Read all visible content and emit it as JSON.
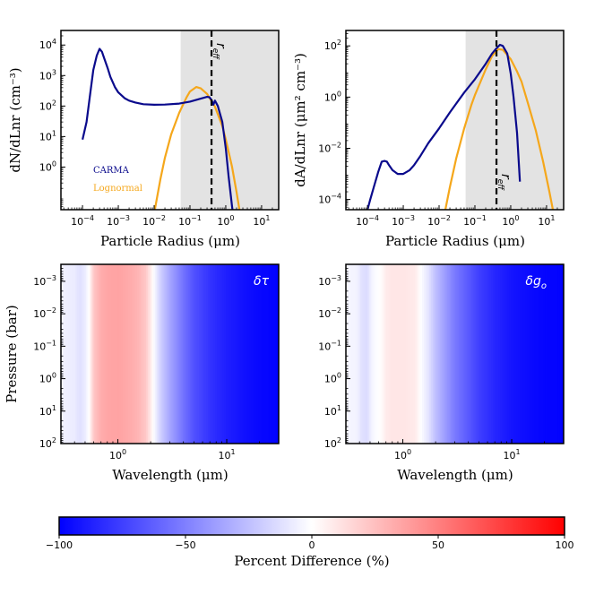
{
  "chart_data": [
    {
      "type": "line",
      "title": "",
      "xlabel": "Particle Radius (μm)",
      "ylabel": "dN/dLnr (cm⁻³)",
      "xscale": "log",
      "yscale": "log",
      "xlim": [
        2.5e-05,
        30
      ],
      "ylim": [
        0.04,
        30000
      ],
      "xticks": [
        {
          "v": 0.0001,
          "b": "10",
          "e": "−4"
        },
        {
          "v": 0.001,
          "b": "10",
          "e": "−3"
        },
        {
          "v": 0.01,
          "b": "10",
          "e": "−2"
        },
        {
          "v": 0.1,
          "b": "10",
          "e": "−1"
        },
        {
          "v": 1,
          "b": "10",
          "e": "0"
        },
        {
          "v": 10,
          "b": "10",
          "e": "1"
        }
      ],
      "yticks": [
        {
          "v": 1,
          "b": "10",
          "e": "0"
        },
        {
          "v": 10,
          "b": "10",
          "e": "1"
        },
        {
          "v": 100,
          "b": "10",
          "e": "2"
        },
        {
          "v": 1000,
          "b": "10",
          "e": "3"
        },
        {
          "v": 10000,
          "b": "10",
          "e": "4"
        }
      ],
      "shaded_region": [
        0.055,
        30
      ],
      "vline": {
        "x": 0.4,
        "label": "r",
        "sub": "eff"
      },
      "legend": [
        {
          "name": "CARMA",
          "color": "#0a0a8c"
        },
        {
          "name": "Lognormal",
          "color": "#f5a71b"
        }
      ],
      "series": [
        {
          "name": "CARMA",
          "color": "#0a0a8c",
          "x": [
            0.0001,
            0.00013,
            0.00016,
            0.0002,
            0.00025,
            0.0003,
            0.00035,
            0.0004,
            0.0005,
            0.0006,
            0.0008,
            0.001,
            0.0015,
            0.002,
            0.003,
            0.005,
            0.01,
            0.02,
            0.05,
            0.1,
            0.2,
            0.3,
            0.35,
            0.4,
            0.45,
            0.5,
            0.6,
            0.8,
            1.0,
            1.2,
            1.5,
            1.8
          ],
          "y": [
            8,
            30,
            200,
            1500,
            4500,
            7500,
            6000,
            3800,
            1800,
            900,
            420,
            280,
            180,
            150,
            130,
            115,
            110,
            112,
            120,
            140,
            175,
            200,
            195,
            160,
            110,
            150,
            100,
            30,
            4,
            0.5,
            0.05,
            0.01
          ]
        },
        {
          "name": "Lognormal",
          "color": "#f5a71b",
          "x": [
            0.01,
            0.015,
            0.02,
            0.03,
            0.05,
            0.08,
            0.1,
            0.15,
            0.2,
            0.3,
            0.5,
            0.8,
            1.0,
            1.5,
            2.0,
            2.5
          ],
          "y": [
            0.03,
            0.4,
            2,
            12,
            60,
            190,
            300,
            420,
            380,
            250,
            95,
            22,
            8,
            1,
            0.15,
            0.03
          ]
        }
      ]
    },
    {
      "type": "line",
      "title": "",
      "xlabel": "Particle Radius (μm)",
      "ylabel": "dA/dLnr (μm² cm⁻³)",
      "xscale": "log",
      "yscale": "log",
      "xlim": [
        2.5e-05,
        30
      ],
      "ylim": [
        4e-05,
        400
      ],
      "xticks": [
        {
          "v": 0.0001,
          "b": "10",
          "e": "−4"
        },
        {
          "v": 0.001,
          "b": "10",
          "e": "−3"
        },
        {
          "v": 0.01,
          "b": "10",
          "e": "−2"
        },
        {
          "v": 0.1,
          "b": "10",
          "e": "−1"
        },
        {
          "v": 1,
          "b": "10",
          "e": "0"
        },
        {
          "v": 10,
          "b": "10",
          "e": "1"
        }
      ],
      "yticks": [
        {
          "v": 0.0001,
          "b": "10",
          "e": "−4"
        },
        {
          "v": 0.01,
          "b": "10",
          "e": "−2"
        },
        {
          "v": 1,
          "b": "10",
          "e": "0"
        },
        {
          "v": 100,
          "b": "10",
          "e": "2"
        }
      ],
      "shaded_region": [
        0.055,
        30
      ],
      "vline": {
        "x": 0.4,
        "label": "r",
        "sub": "eff"
      },
      "series": [
        {
          "name": "CARMA",
          "color": "#0a0a8c",
          "x": [
            0.0001,
            0.00012,
            0.00015,
            0.0002,
            0.00025,
            0.0003,
            0.00035,
            0.0004,
            0.0005,
            0.0007,
            0.001,
            0.0015,
            0.002,
            0.003,
            0.005,
            0.01,
            0.02,
            0.05,
            0.1,
            0.2,
            0.3,
            0.4,
            0.5,
            0.6,
            0.8,
            1.0,
            1.2,
            1.5,
            1.8
          ],
          "y": [
            4e-05,
            0.0001,
            0.0003,
            0.0012,
            0.003,
            0.0032,
            0.003,
            0.0022,
            0.0014,
            0.001,
            0.001,
            0.0014,
            0.0022,
            0.005,
            0.016,
            0.06,
            0.25,
            1.5,
            5,
            20,
            50,
            80,
            110,
            100,
            50,
            8,
            1,
            0.04,
            0.0005
          ]
        },
        {
          "name": "Lognormal",
          "color": "#f5a71b",
          "x": [
            0.015,
            0.02,
            0.03,
            0.05,
            0.08,
            0.1,
            0.2,
            0.3,
            0.45,
            0.6,
            1.0,
            1.5,
            2.0,
            3.0,
            5.0,
            8.0,
            12.0,
            15.0
          ],
          "y": [
            4e-05,
            0.0003,
            0.004,
            0.06,
            0.5,
            1.2,
            12,
            40,
            75,
            70,
            30,
            10,
            4,
            0.6,
            0.05,
            0.003,
            0.0002,
            4e-05
          ]
        }
      ]
    },
    {
      "type": "heatmap",
      "xlabel": "Wavelength (μm)",
      "ylabel": "Pressure (bar)",
      "annotation": "δτ",
      "xscale": "log",
      "yscale": "log",
      "xlim": [
        0.3,
        30
      ],
      "ylim": [
        100,
        0.0003
      ],
      "xticks": [
        {
          "v": 1,
          "b": "10",
          "e": "0"
        },
        {
          "v": 10,
          "b": "10",
          "e": "1"
        }
      ],
      "yticks": [
        {
          "v": 0.001,
          "b": "10",
          "e": "−3"
        },
        {
          "v": 0.01,
          "b": "10",
          "e": "−2"
        },
        {
          "v": 0.1,
          "b": "10",
          "e": "−1"
        },
        {
          "v": 1,
          "b": "10",
          "e": "0"
        },
        {
          "v": 10,
          "b": "10",
          "e": "1"
        },
        {
          "v": 100,
          "b": "10",
          "e": "2"
        }
      ],
      "profile_wavelength": [
        0.3,
        0.4,
        0.45,
        0.5,
        0.55,
        0.6,
        0.7,
        0.8,
        1.0,
        1.2,
        1.5,
        1.8,
        2.0,
        2.2,
        2.5,
        3.0,
        4.0,
        5.0,
        7.0,
        10.0,
        15.0,
        20.0,
        30.0
      ],
      "profile_diff": [
        -5,
        -8,
        -12,
        -8,
        2,
        22,
        32,
        35,
        36,
        34,
        30,
        22,
        8,
        -5,
        -20,
        -35,
        -55,
        -68,
        -80,
        -88,
        -94,
        -97,
        -99
      ]
    },
    {
      "type": "heatmap",
      "xlabel": "Wavelength (μm)",
      "ylabel": "",
      "annotation": "δg",
      "annotation_sub": "o",
      "xscale": "log",
      "yscale": "log",
      "xlim": [
        0.3,
        30
      ],
      "ylim": [
        100,
        0.0003
      ],
      "xticks": [
        {
          "v": 1,
          "b": "10",
          "e": "0"
        },
        {
          "v": 10,
          "b": "10",
          "e": "1"
        }
      ],
      "yticks": [
        {
          "v": 0.001,
          "b": "10",
          "e": "−3"
        },
        {
          "v": 0.01,
          "b": "10",
          "e": "−2"
        },
        {
          "v": 0.1,
          "b": "10",
          "e": "−1"
        },
        {
          "v": 1,
          "b": "10",
          "e": "0"
        },
        {
          "v": 10,
          "b": "10",
          "e": "1"
        },
        {
          "v": 100,
          "b": "10",
          "e": "2"
        }
      ],
      "profile_wavelength": [
        0.3,
        0.38,
        0.42,
        0.47,
        0.52,
        0.6,
        0.65,
        0.7,
        0.8,
        1.0,
        1.3,
        1.4,
        1.5,
        1.7,
        2.0,
        2.5,
        3.0,
        4.0,
        5.0,
        7.0,
        10.0,
        15.0,
        20.0,
        30.0
      ],
      "profile_diff": [
        -3,
        -5,
        -12,
        -14,
        -4,
        0,
        3,
        8,
        10,
        10,
        8,
        3,
        -2,
        -10,
        -25,
        -40,
        -52,
        -65,
        -75,
        -85,
        -92,
        -96,
        -98,
        -99
      ]
    }
  ],
  "colorbar": {
    "label": "Percent Difference (%)",
    "range": [
      -100,
      100
    ],
    "ticks": [
      -100,
      -50,
      0,
      50,
      100
    ],
    "tick_labels": [
      "−100",
      "−50",
      "0",
      "50",
      "100"
    ]
  }
}
